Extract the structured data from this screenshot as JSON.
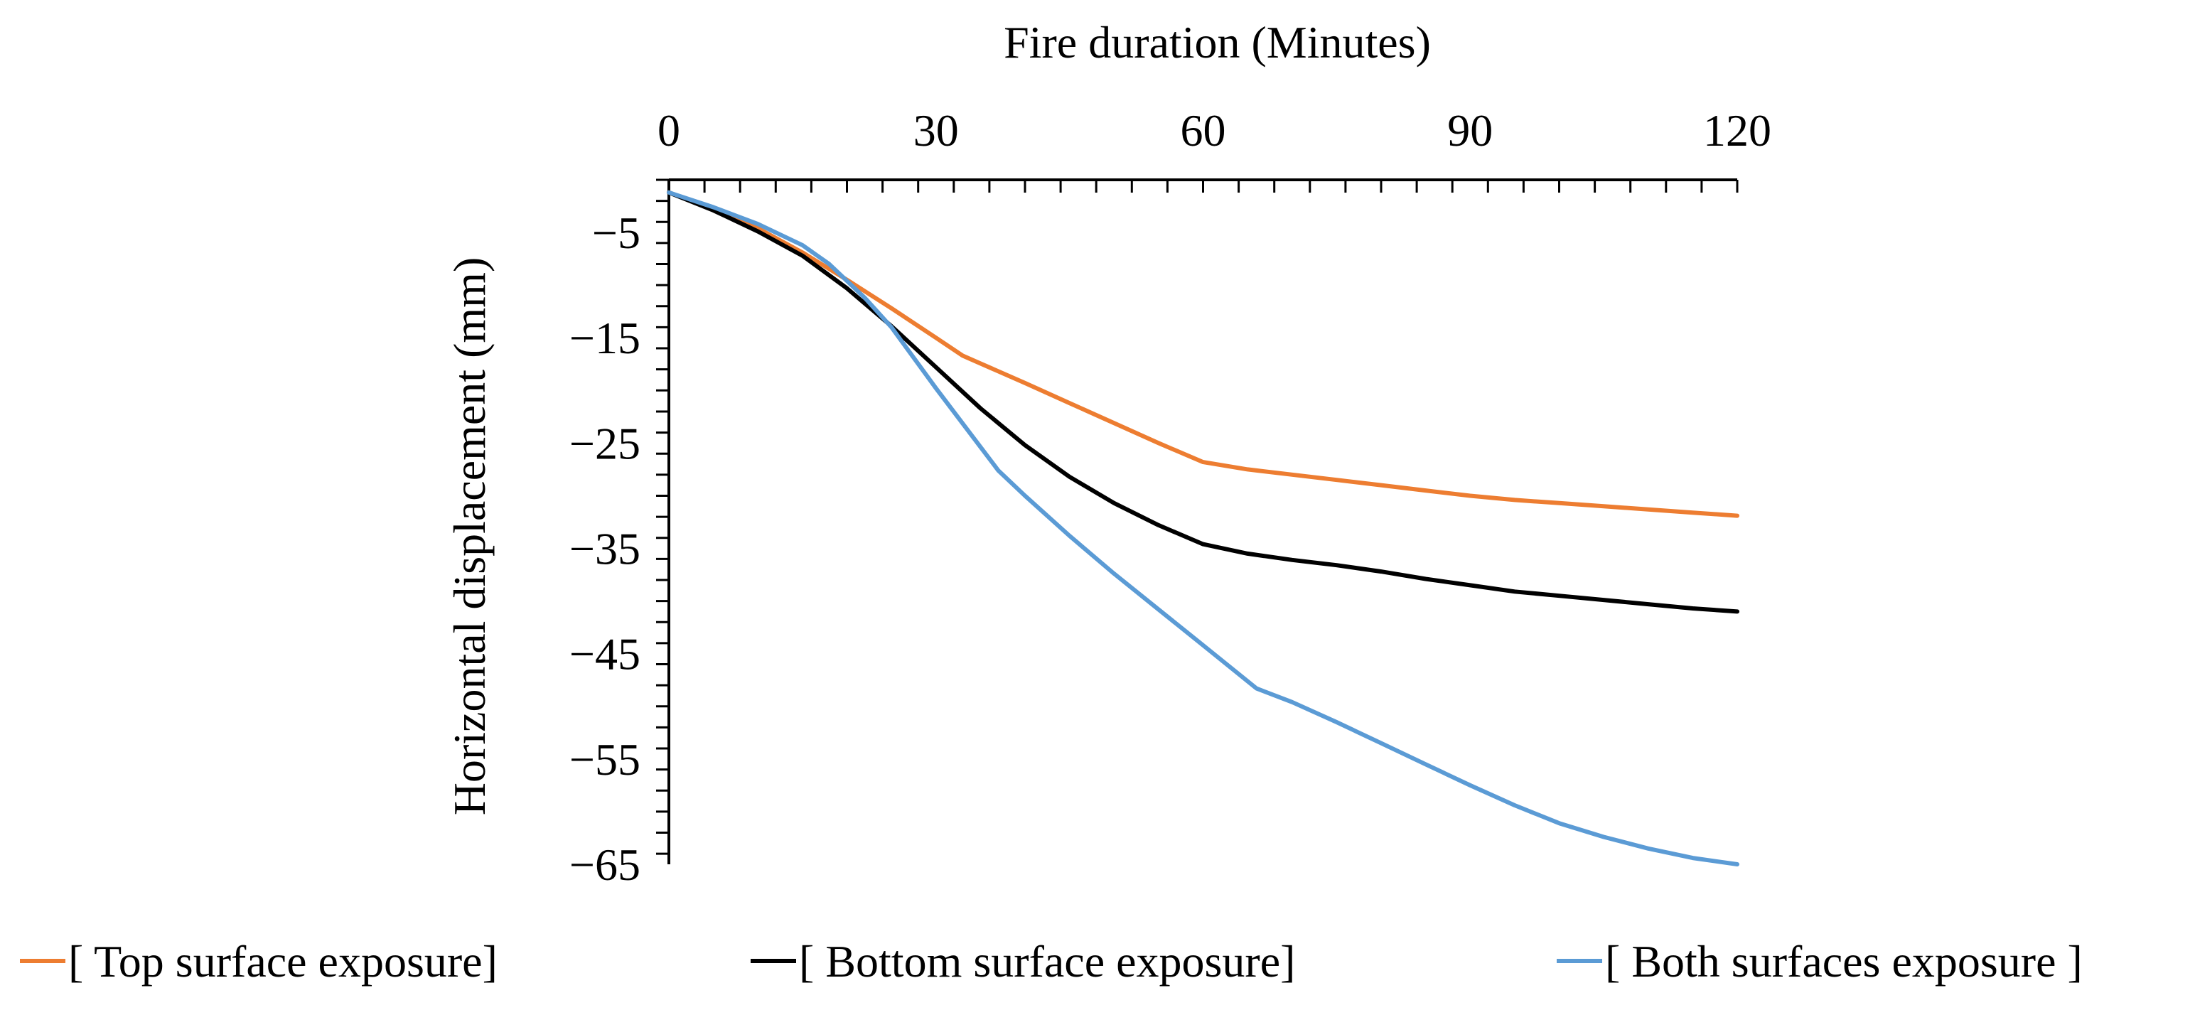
{
  "chart_data": {
    "type": "line",
    "title": "",
    "xlabel": "Fire duration (Minutes)",
    "ylabel": "Horizontal displacement (mm)",
    "xlim": [
      0,
      120
    ],
    "ylim": [
      -65,
      0
    ],
    "xticks": [
      0,
      30,
      60,
      90,
      120
    ],
    "yticks": [
      -5,
      -15,
      -25,
      -35,
      -45,
      -55,
      -65
    ],
    "x_minor_step": 4,
    "y_minor_step": 2,
    "x_axis_position": "top",
    "legend_position": "bottom",
    "series": [
      {
        "name": "[ Top surface exposure]",
        "color": "#ED7D31",
        "x": [
          0,
          5,
          10,
          15,
          20,
          25,
          30,
          33,
          40,
          45,
          50,
          55,
          60,
          65,
          70,
          75,
          80,
          85,
          90,
          95,
          100,
          105,
          110,
          115,
          120
        ],
        "y": [
          -1.2,
          -2.8,
          -4.6,
          -6.9,
          -9.5,
          -12.2,
          -15.0,
          -16.7,
          -19.3,
          -21.2,
          -23.1,
          -25.0,
          -26.8,
          -27.5,
          -28.0,
          -28.5,
          -29.0,
          -29.5,
          -30.0,
          -30.4,
          -30.7,
          -31.0,
          -31.3,
          -31.6,
          -31.9
        ]
      },
      {
        "name": "[ Bottom surface exposure]",
        "color": "#000000",
        "x": [
          0,
          5,
          10,
          15,
          20,
          25,
          30,
          35,
          40,
          45,
          50,
          55,
          60,
          65,
          70,
          75,
          80,
          85,
          90,
          95,
          100,
          105,
          110,
          115,
          120
        ],
        "y": [
          -1.2,
          -2.9,
          -4.9,
          -7.2,
          -10.3,
          -13.9,
          -17.8,
          -21.7,
          -25.2,
          -28.2,
          -30.7,
          -32.8,
          -34.6,
          -35.5,
          -36.1,
          -36.6,
          -37.2,
          -37.9,
          -38.5,
          -39.1,
          -39.5,
          -39.9,
          -40.3,
          -40.7,
          -41.0
        ]
      },
      {
        "name": "[ Both surfaces exposure ]",
        "color": "#5B9BD5",
        "x": [
          0,
          5,
          10,
          15,
          18,
          22,
          25,
          30,
          37,
          40,
          45,
          50,
          55,
          60,
          66,
          70,
          75,
          80,
          85,
          90,
          95,
          100,
          105,
          110,
          115,
          120
        ],
        "y": [
          -1.2,
          -2.6,
          -4.2,
          -6.2,
          -8.0,
          -11.2,
          -14.0,
          -19.8,
          -27.6,
          -30.0,
          -33.8,
          -37.4,
          -40.8,
          -44.2,
          -48.3,
          -49.6,
          -51.5,
          -53.5,
          -55.5,
          -57.5,
          -59.4,
          -61.1,
          -62.4,
          -63.5,
          -64.4,
          -65.0
        ]
      }
    ]
  }
}
